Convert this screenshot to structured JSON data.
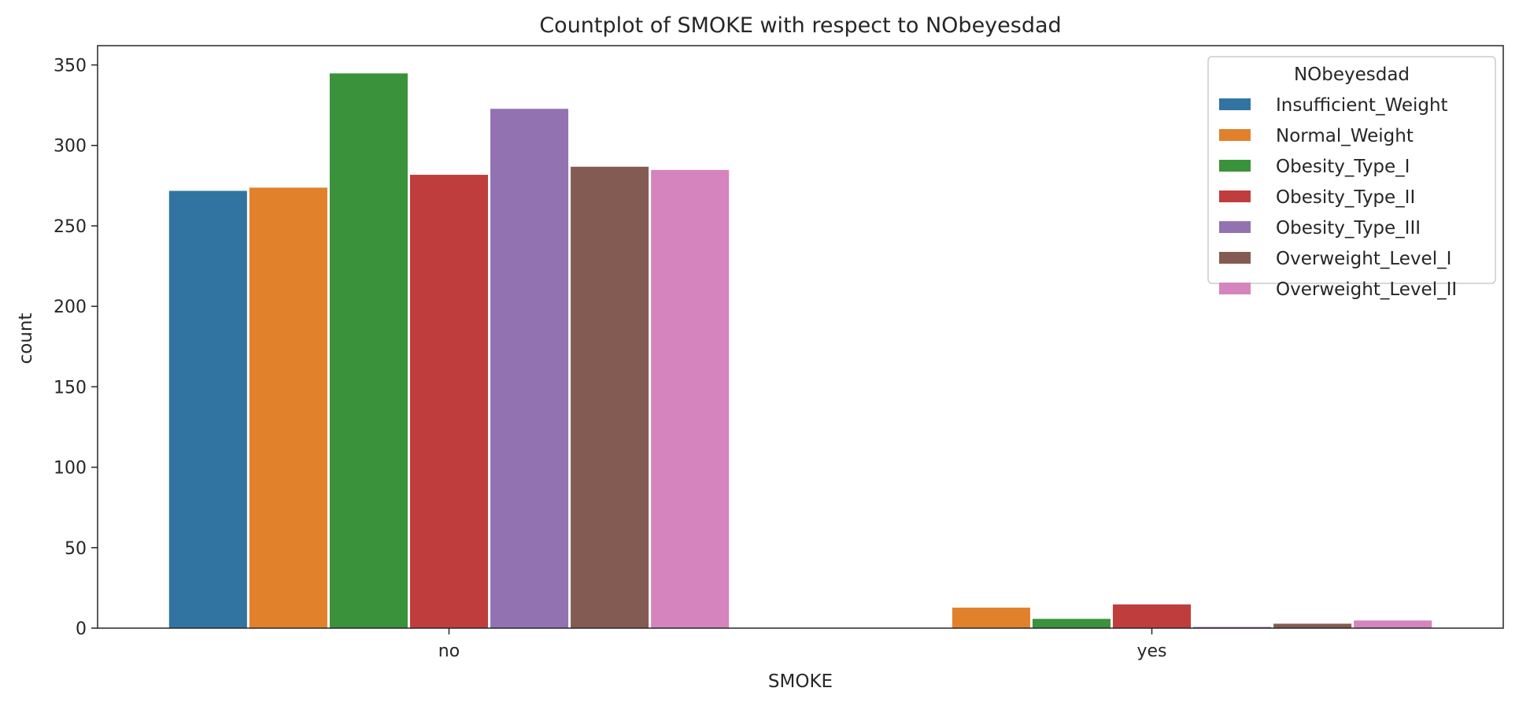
{
  "chart_data": {
    "type": "bar",
    "title": "Countplot of SMOKE with respect to NObeyesdad",
    "xlabel": "SMOKE",
    "ylabel": "count",
    "categories": [
      "no",
      "yes"
    ],
    "ylim": [
      0,
      362
    ],
    "yticks": [
      0,
      50,
      100,
      150,
      200,
      250,
      300,
      350
    ],
    "grid": false,
    "legend": {
      "title": "NObeyesdad",
      "placement": "top-right"
    },
    "series": [
      {
        "name": "Insufficient_Weight",
        "color": "#3274a1",
        "values": [
          272,
          0
        ]
      },
      {
        "name": "Normal_Weight",
        "color": "#e1812c",
        "values": [
          274,
          13
        ]
      },
      {
        "name": "Obesity_Type_I",
        "color": "#3a923a",
        "values": [
          345,
          6
        ]
      },
      {
        "name": "Obesity_Type_II",
        "color": "#c03d3e",
        "values": [
          282,
          15
        ]
      },
      {
        "name": "Obesity_Type_III",
        "color": "#9372b2",
        "values": [
          323,
          1
        ]
      },
      {
        "name": "Overweight_Level_I",
        "color": "#845b53",
        "values": [
          287,
          3
        ]
      },
      {
        "name": "Overweight_Level_II",
        "color": "#d684bd",
        "values": [
          285,
          5
        ]
      }
    ]
  }
}
